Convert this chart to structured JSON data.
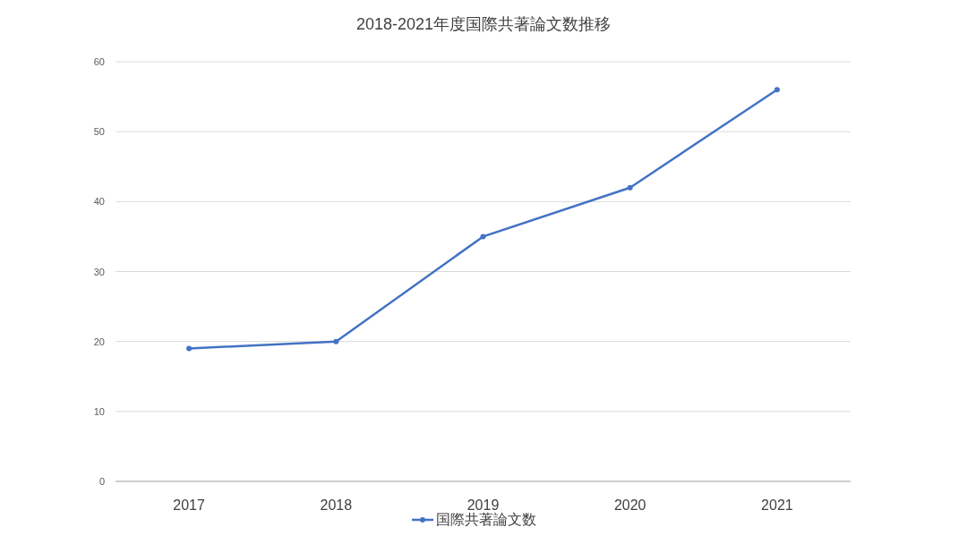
{
  "chart_data": {
    "type": "line",
    "title": "2018-2021年度国際共著論文数推移",
    "categories": [
      "2017",
      "2018",
      "2019",
      "2020",
      "2021"
    ],
    "series": [
      {
        "name": "国際共著論文数",
        "color": "#4472c4",
        "values": [
          19,
          20,
          35,
          42,
          56
        ]
      }
    ],
    "ylim": [
      0,
      60
    ],
    "yticks": [
      0,
      10,
      20,
      30,
      40,
      50,
      60
    ],
    "grid": "y",
    "legend": "bottom",
    "marker": "circle"
  }
}
